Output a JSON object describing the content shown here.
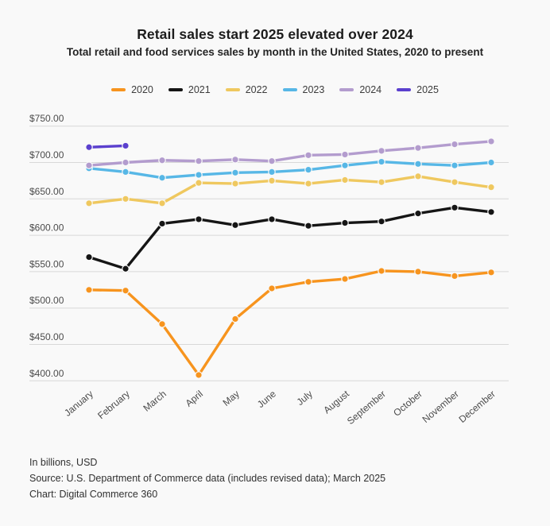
{
  "title": "Retail sales start 2025 elevated over 2024",
  "subtitle": "Total retail and food services sales by month in the United States, 2020 to present",
  "footer": {
    "note": "In billions, USD",
    "source": "Source: U.S. Department of Commerce data (includes revised data); March 2025",
    "credit": "Chart: Digital Commerce 360"
  },
  "chart_data": {
    "type": "line",
    "title": "Retail sales start 2025 elevated over 2024",
    "subtitle": "Total retail and food services sales by month in the United States, 2020 to present",
    "unit": "billions USD",
    "categories": [
      "January",
      "February",
      "March",
      "April",
      "May",
      "June",
      "July",
      "August",
      "September",
      "October",
      "November",
      "December"
    ],
    "ylim": [
      400,
      750
    ],
    "y_ticks": [
      750,
      700,
      650,
      600,
      550,
      500,
      450,
      400
    ],
    "y_tick_prefix": "$",
    "y_tick_decimals": 2,
    "grid": "horizontal",
    "legend_position": "top",
    "x_label_rotation": -40,
    "series": [
      {
        "name": "2020",
        "color": "#F7941E",
        "values": [
          525,
          524,
          478,
          408,
          485,
          527,
          536,
          540,
          551,
          550,
          544,
          549
        ]
      },
      {
        "name": "2021",
        "color": "#151515",
        "values": [
          570,
          554,
          616,
          622,
          614,
          622,
          613,
          617,
          619,
          630,
          638,
          632
        ]
      },
      {
        "name": "2022",
        "color": "#EFC85F",
        "values": [
          644,
          650,
          644,
          672,
          671,
          675,
          671,
          676,
          673,
          681,
          673,
          666
        ]
      },
      {
        "name": "2023",
        "color": "#57B7E6",
        "values": [
          692,
          687,
          679,
          683,
          686,
          687,
          690,
          696,
          701,
          698,
          696,
          700
        ]
      },
      {
        "name": "2024",
        "color": "#B39CCE",
        "values": [
          696,
          700,
          703,
          702,
          704,
          702,
          710,
          711,
          716,
          720,
          725,
          729
        ]
      },
      {
        "name": "2025",
        "color": "#5B40CE",
        "values": [
          721,
          723
        ]
      }
    ]
  }
}
